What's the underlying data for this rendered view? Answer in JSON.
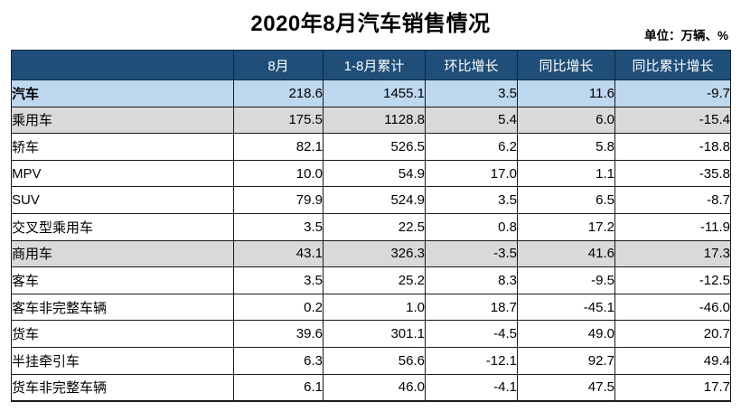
{
  "title": "2020年8月汽车销售情况",
  "unit_label": "单位：万辆、%",
  "colors": {
    "header_bg": "#1F4E79",
    "header_text": "#FFFFFF",
    "total_row_bg": "#BDD7EE",
    "group_row_bg": "#D9D9D9",
    "border": "#1a1a1a"
  },
  "chart_data": {
    "type": "table",
    "title": "2020年8月汽车销售情况",
    "unit": "单位：万辆、%",
    "columns": [
      "",
      "8月",
      "1-8月累计",
      "环比增长",
      "同比增长",
      "同比累计增长"
    ],
    "rows": [
      {
        "label": "汽车",
        "indent": 0,
        "style": "total",
        "values": [
          "218.6",
          "1455.1",
          "3.5",
          "11.6",
          "-9.7"
        ]
      },
      {
        "label": "乘用车",
        "indent": 1,
        "style": "group",
        "values": [
          "175.5",
          "1128.8",
          "5.4",
          "6.0",
          "-15.4"
        ]
      },
      {
        "label": "轿车",
        "indent": 2,
        "style": "plain",
        "values": [
          "82.1",
          "526.5",
          "6.2",
          "5.8",
          "-18.8"
        ]
      },
      {
        "label": "MPV",
        "indent": 2,
        "style": "plain",
        "values": [
          "10.0",
          "54.9",
          "17.0",
          "1.1",
          "-35.8"
        ]
      },
      {
        "label": "SUV",
        "indent": 2,
        "style": "plain",
        "values": [
          "79.9",
          "524.9",
          "3.5",
          "6.5",
          "-8.7"
        ]
      },
      {
        "label": "交叉型乘用车",
        "indent": 2,
        "style": "plain",
        "values": [
          "3.5",
          "22.5",
          "0.8",
          "17.2",
          "-11.9"
        ]
      },
      {
        "label": "商用车",
        "indent": 1,
        "style": "group",
        "values": [
          "43.1",
          "326.3",
          "-3.5",
          "41.6",
          "17.3"
        ]
      },
      {
        "label": "客车",
        "indent": 2,
        "style": "plain",
        "values": [
          "3.5",
          "25.2",
          "8.3",
          "-9.5",
          "-12.5"
        ]
      },
      {
        "label": "客车非完整车辆",
        "indent": 3,
        "style": "plain",
        "values": [
          "0.2",
          "1.0",
          "18.7",
          "-45.1",
          "-46.0"
        ]
      },
      {
        "label": "货车",
        "indent": 2,
        "style": "plain",
        "values": [
          "39.6",
          "301.1",
          "-4.5",
          "49.0",
          "20.7"
        ]
      },
      {
        "label": "半挂牵引车",
        "indent": 3,
        "style": "plain",
        "values": [
          "6.3",
          "56.6",
          "-12.1",
          "92.7",
          "49.4"
        ]
      },
      {
        "label": "货车非完整车辆",
        "indent": 3,
        "style": "plain",
        "values": [
          "6.1",
          "46.0",
          "-4.1",
          "47.5",
          "17.7"
        ]
      }
    ]
  }
}
